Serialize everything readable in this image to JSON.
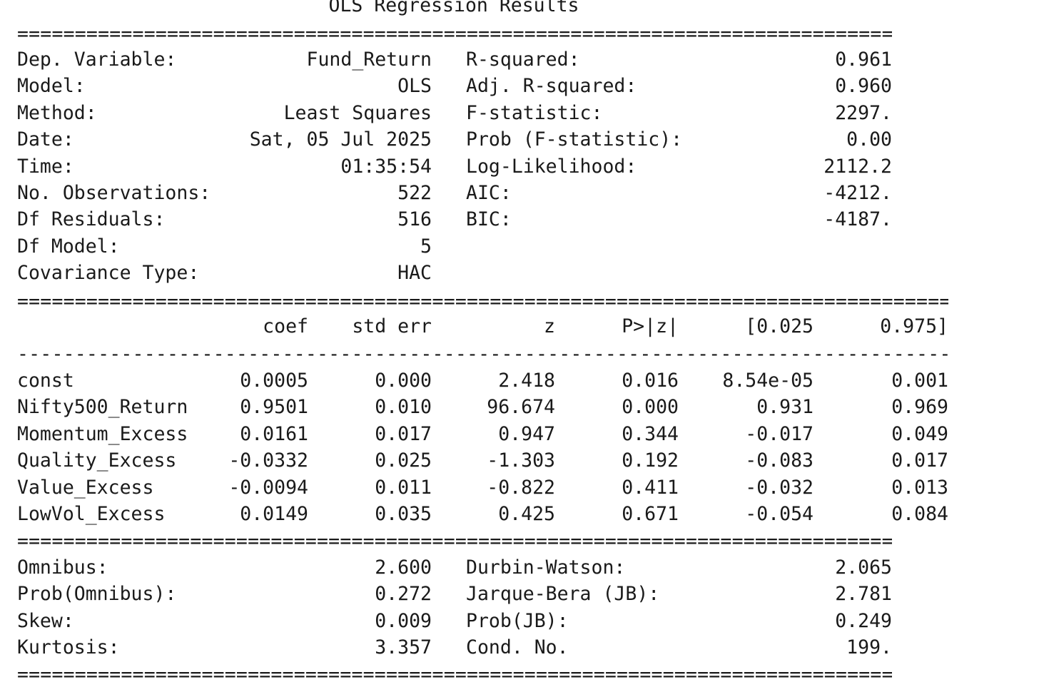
{
  "title": "OLS Regression Results",
  "separators": {
    "double_short": "==============================================================================",
    "double_long": "==================================================================================",
    "dash_long": "----------------------------------------------------------------------------------"
  },
  "top_left": [
    {
      "label": "Dep. Variable:",
      "value": "Fund_Return"
    },
    {
      "label": "Model:",
      "value": "OLS"
    },
    {
      "label": "Method:",
      "value": "Least Squares"
    },
    {
      "label": "Date:",
      "value": "Sat, 05 Jul 2025"
    },
    {
      "label": "Time:",
      "value": "01:35:54"
    },
    {
      "label": "No. Observations:",
      "value": "522"
    },
    {
      "label": "Df Residuals:",
      "value": "516"
    },
    {
      "label": "Df Model:",
      "value": "5"
    },
    {
      "label": "Covariance Type:",
      "value": "HAC"
    }
  ],
  "top_right": [
    {
      "label": "R-squared:",
      "value": "0.961"
    },
    {
      "label": "Adj. R-squared:",
      "value": "0.960"
    },
    {
      "label": "F-statistic:",
      "value": "2297."
    },
    {
      "label": "Prob (F-statistic):",
      "value": "0.00"
    },
    {
      "label": "Log-Likelihood:",
      "value": "2112.2"
    },
    {
      "label": "AIC:",
      "value": "-4212."
    },
    {
      "label": "BIC:",
      "value": "-4187."
    }
  ],
  "coef_headers": [
    "coef",
    "std err",
    "z",
    "P>|z|",
    "[0.025",
    "0.975]"
  ],
  "coef_rows": [
    {
      "name": "const",
      "vals": [
        "0.0005",
        "0.000",
        "2.418",
        "0.016",
        "8.54e-05",
        "0.001"
      ]
    },
    {
      "name": "Nifty500_Return",
      "vals": [
        "0.9501",
        "0.010",
        "96.674",
        "0.000",
        "0.931",
        "0.969"
      ]
    },
    {
      "name": "Momentum_Excess",
      "vals": [
        "0.0161",
        "0.017",
        "0.947",
        "0.344",
        "-0.017",
        "0.049"
      ]
    },
    {
      "name": "Quality_Excess",
      "vals": [
        "-0.0332",
        "0.025",
        "-1.303",
        "0.192",
        "-0.083",
        "0.017"
      ]
    },
    {
      "name": "Value_Excess",
      "vals": [
        "-0.0094",
        "0.011",
        "-0.822",
        "0.411",
        "-0.032",
        "0.013"
      ]
    },
    {
      "name": "LowVol_Excess",
      "vals": [
        "0.0149",
        "0.035",
        "0.425",
        "0.671",
        "-0.054",
        "0.084"
      ]
    }
  ],
  "bottom_left": [
    {
      "label": "Omnibus:",
      "value": "2.600"
    },
    {
      "label": "Prob(Omnibus):",
      "value": "0.272"
    },
    {
      "label": "Skew:",
      "value": "0.009"
    },
    {
      "label": "Kurtosis:",
      "value": "3.357"
    }
  ],
  "bottom_right": [
    {
      "label": "Durbin-Watson:",
      "value": "2.065"
    },
    {
      "label": "Jarque-Bera (JB):",
      "value": "2.781"
    },
    {
      "label": "Prob(JB):",
      "value": "0.249"
    },
    {
      "label": "Cond. No.",
      "value": "199."
    }
  ]
}
